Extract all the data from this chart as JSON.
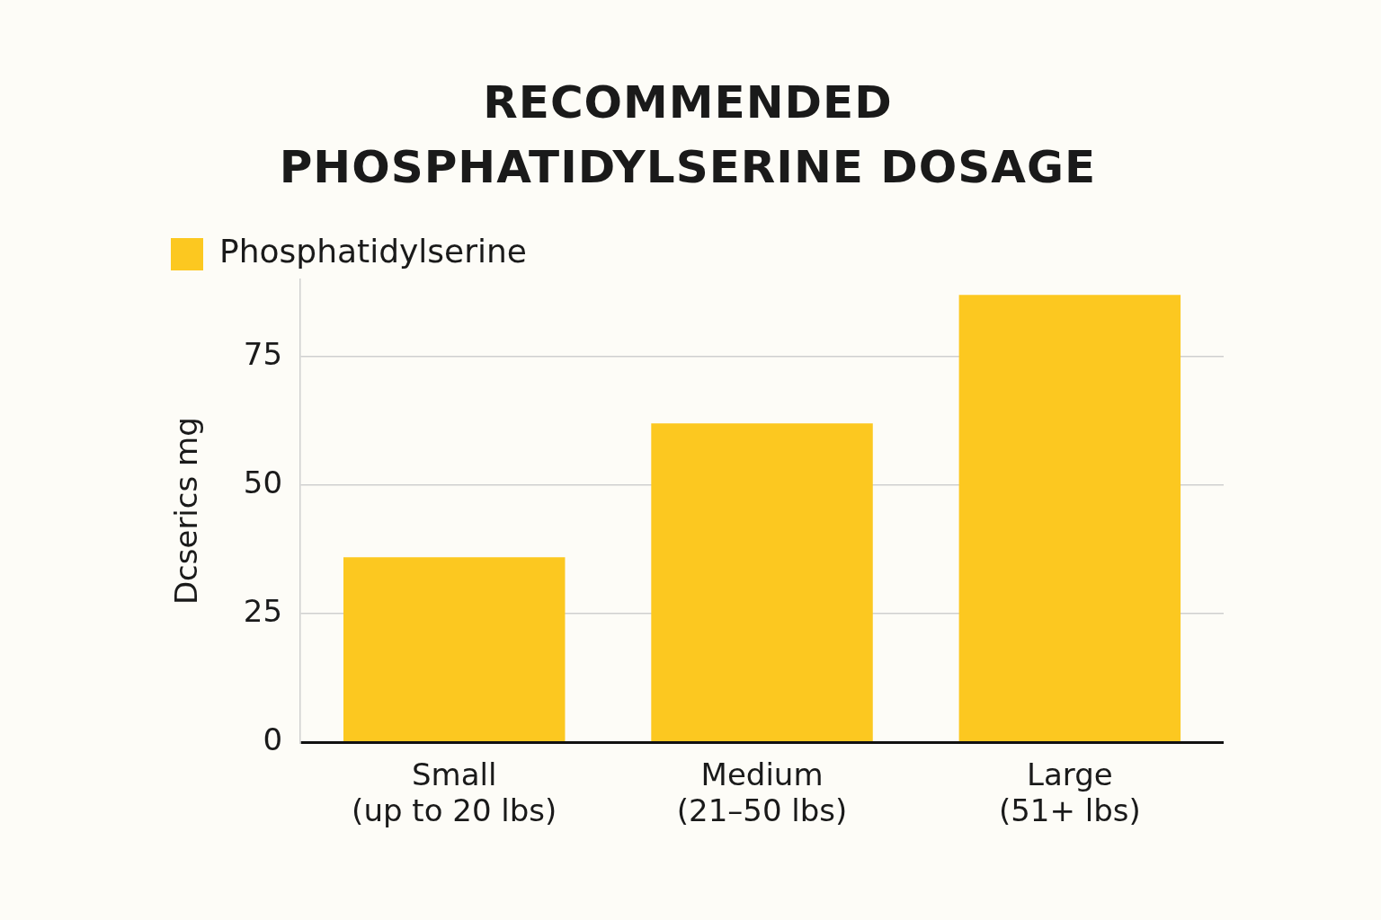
{
  "chart_data": {
    "type": "bar",
    "title": "RECOMMENDED PHOSPHATIDYLSERINE DOSAGE",
    "ylabel": "Dcserics mg",
    "categories": [
      "Small (up to 20 lbs)",
      "Medium (21–50 lbs)",
      "Large (51+ lbs)"
    ],
    "series": [
      {
        "name": "Phosphatidylserine",
        "color": "#fcc820",
        "values": [
          36,
          62,
          87
        ]
      }
    ],
    "ylim": [
      0,
      90
    ],
    "yticks": [
      0,
      25,
      50,
      75
    ],
    "grid": "y",
    "legend": "top left"
  }
}
